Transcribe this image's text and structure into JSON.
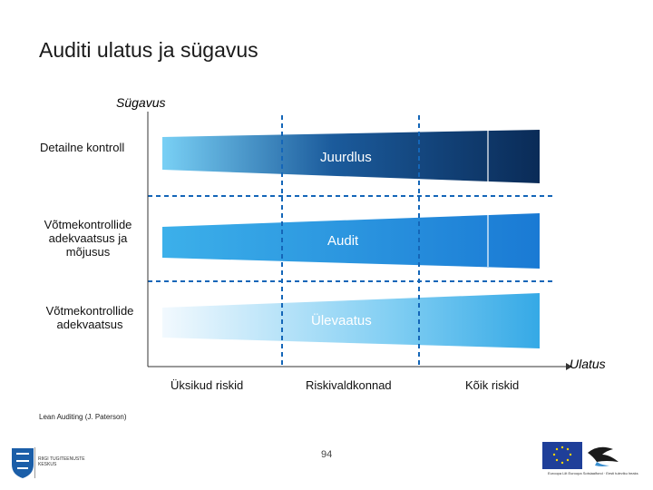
{
  "title": "Auditi ulatus ja sügavus",
  "axes": {
    "y_label": "Sügavus",
    "x_label": "Ulatus"
  },
  "rows": [
    {
      "label": "Detailne kontroll",
      "band": "Juurdlus"
    },
    {
      "label": "Võtmekontrollide adekvaatsus ja mõjusus",
      "band": "Audit"
    },
    {
      "label": "Võtmekontrollide adekvaatsus",
      "band": "Ülevaatus"
    }
  ],
  "categories": [
    "Üksikud riskid",
    "Riskivaldkonnad",
    "Kõik riskid"
  ],
  "source": "Lean Auditing (J. Paterson)",
  "page_number": "94",
  "logos": {
    "left_text": "RIIGI TUGITEENUSTE KESKUS",
    "right_text": "Euroopa Liit Euroopa Sotsiaalfond · Eesti tuleviku heaks"
  },
  "colors": {
    "band_dark": "#0b2a57",
    "band_mid": "#1e7fd6",
    "band_light": "#d8eefb",
    "dash": "#1466b8",
    "axis": "#333333"
  }
}
